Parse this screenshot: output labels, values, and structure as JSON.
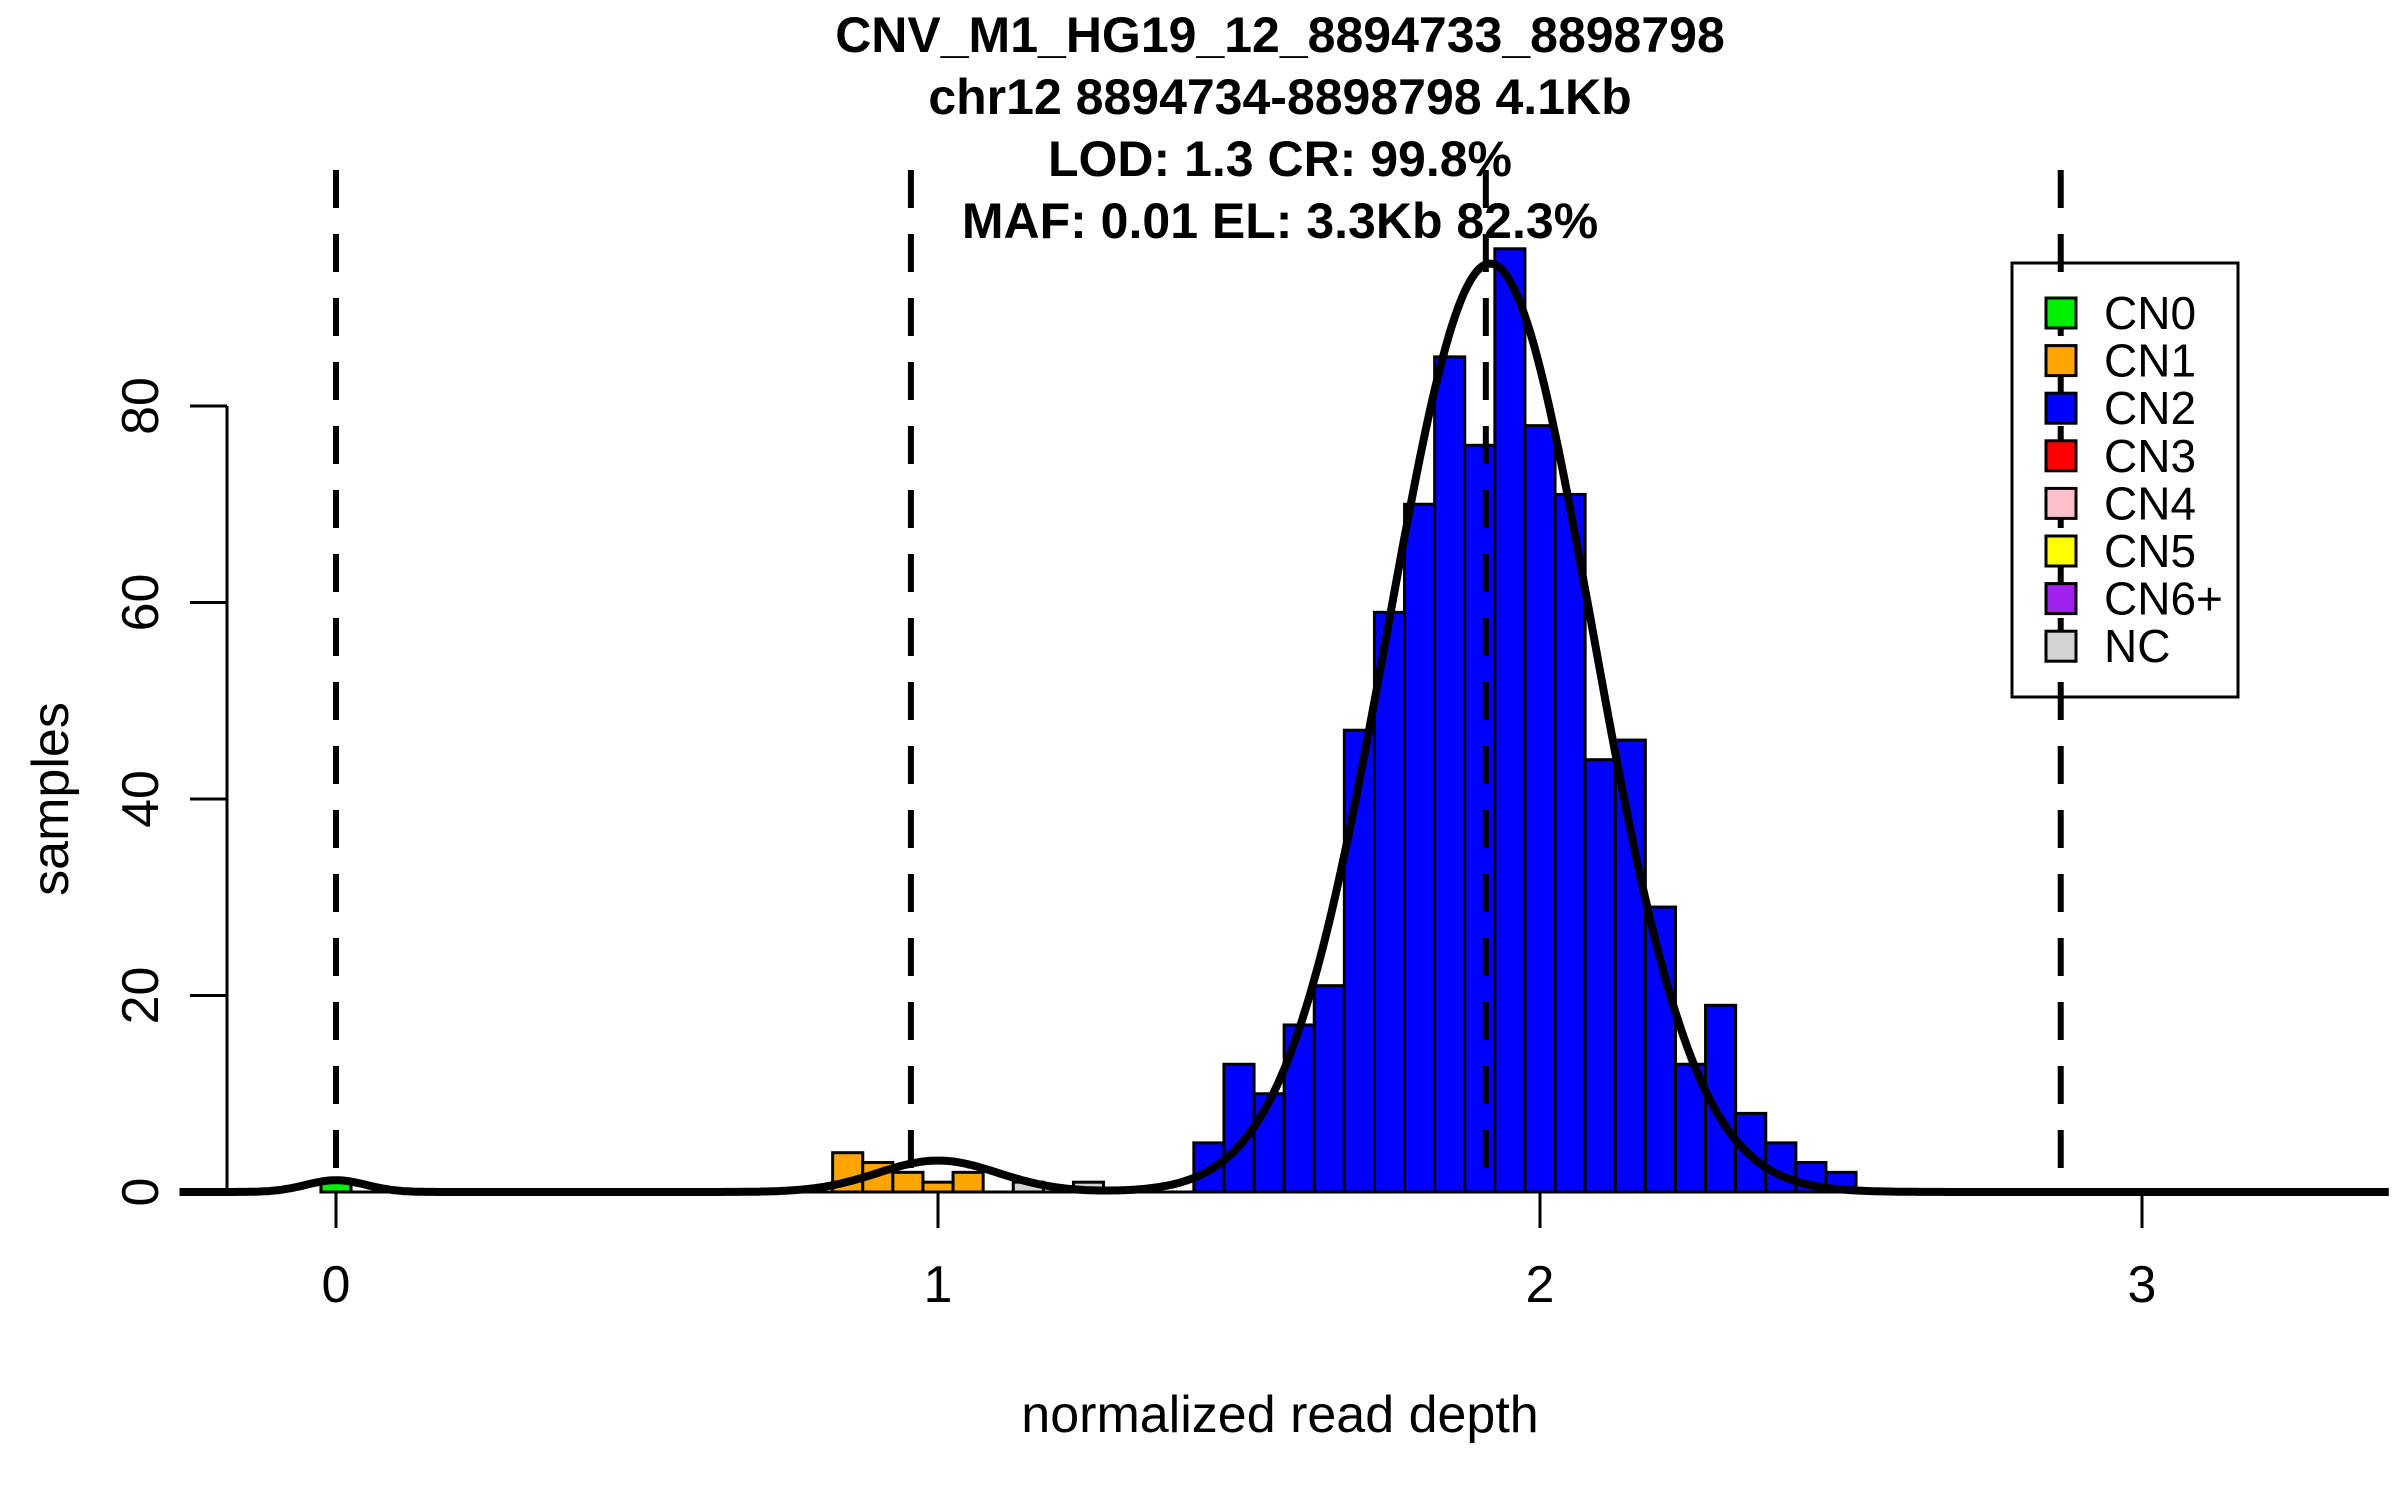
{
  "chart_data": {
    "type": "bar",
    "subtype": "histogram",
    "title_lines": [
      "CNV_M1_HG19_12_8894733_8898798",
      "chr12 8894734-8898798 4.1Kb",
      "LOD: 1.3 CR: 99.8%",
      "MAF: 0.01 EL: 3.3Kb 82.3%"
    ],
    "xlabel": "normalized read depth",
    "ylabel": "samples",
    "x_ticks": [
      "0",
      "1",
      "2",
      "3"
    ],
    "x_tick_values": [
      0,
      1,
      2,
      3
    ],
    "y_ticks": [
      "0",
      "20",
      "40",
      "60",
      "80"
    ],
    "y_tick_values": [
      0,
      20,
      40,
      60,
      80
    ],
    "xlim": [
      -0.26,
      3.41
    ],
    "ylim": [
      0,
      104
    ],
    "grid": false,
    "bin_width": 0.05,
    "bars": [
      {
        "start": -0.025,
        "height": 1,
        "cn": "CN0"
      },
      {
        "start": 0.825,
        "height": 4,
        "cn": "CN1"
      },
      {
        "start": 0.875,
        "height": 3,
        "cn": "CN1"
      },
      {
        "start": 0.925,
        "height": 2,
        "cn": "CN1"
      },
      {
        "start": 0.975,
        "height": 1,
        "cn": "CN1"
      },
      {
        "start": 1.025,
        "height": 2,
        "cn": "CN1"
      },
      {
        "start": 1.125,
        "height": 1,
        "cn": "NC"
      },
      {
        "start": 1.225,
        "height": 1,
        "cn": "NC"
      },
      {
        "start": 1.425,
        "height": 5,
        "cn": "CN2"
      },
      {
        "start": 1.475,
        "height": 13,
        "cn": "CN2"
      },
      {
        "start": 1.525,
        "height": 10,
        "cn": "CN2"
      },
      {
        "start": 1.575,
        "height": 17,
        "cn": "CN2"
      },
      {
        "start": 1.625,
        "height": 21,
        "cn": "CN2"
      },
      {
        "start": 1.675,
        "height": 47,
        "cn": "CN2"
      },
      {
        "start": 1.725,
        "height": 59,
        "cn": "CN2"
      },
      {
        "start": 1.775,
        "height": 70,
        "cn": "CN2"
      },
      {
        "start": 1.825,
        "height": 85,
        "cn": "CN2"
      },
      {
        "start": 1.875,
        "height": 76,
        "cn": "CN2"
      },
      {
        "start": 1.925,
        "height": 96,
        "cn": "CN2"
      },
      {
        "start": 1.975,
        "height": 78,
        "cn": "CN2"
      },
      {
        "start": 2.025,
        "height": 71,
        "cn": "CN2"
      },
      {
        "start": 2.075,
        "height": 44,
        "cn": "CN2"
      },
      {
        "start": 2.125,
        "height": 46,
        "cn": "CN2"
      },
      {
        "start": 2.175,
        "height": 29,
        "cn": "CN2"
      },
      {
        "start": 2.225,
        "height": 13,
        "cn": "CN2"
      },
      {
        "start": 2.275,
        "height": 19,
        "cn": "CN2"
      },
      {
        "start": 2.325,
        "height": 8,
        "cn": "CN2"
      },
      {
        "start": 2.375,
        "height": 5,
        "cn": "CN2"
      },
      {
        "start": 2.425,
        "height": 3,
        "cn": "CN2"
      },
      {
        "start": 2.475,
        "height": 2,
        "cn": "CN2"
      }
    ],
    "dashed_lines_x": [
      0,
      0.955,
      1.91,
      2.865
    ],
    "curve_components": [
      {
        "mu": 0.0,
        "sigma": 0.05,
        "amp": 1.2
      },
      {
        "mu": 1.0,
        "sigma": 0.1,
        "amp": 3.2
      },
      {
        "mu": 1.917,
        "sigma": 0.17,
        "amp": 94.5
      }
    ],
    "legend_position": "top-right"
  },
  "legend": {
    "entries": [
      {
        "label": "CN0",
        "color": "#00EE00"
      },
      {
        "label": "CN1",
        "color": "#FFA500"
      },
      {
        "label": "CN2",
        "color": "#0000FF"
      },
      {
        "label": "CN3",
        "color": "#FF0000"
      },
      {
        "label": "CN4",
        "color": "#FFC0CB"
      },
      {
        "label": "CN5",
        "color": "#FFFF00"
      },
      {
        "label": "CN6+",
        "color": "#A020F0"
      },
      {
        "label": "NC",
        "color": "#D3D3D3"
      }
    ]
  },
  "colors": {
    "background": "#FFFFFF",
    "axis": "#000000",
    "bar_outline": "#000000",
    "curve": "#000000",
    "dashed_line": "#000000"
  }
}
